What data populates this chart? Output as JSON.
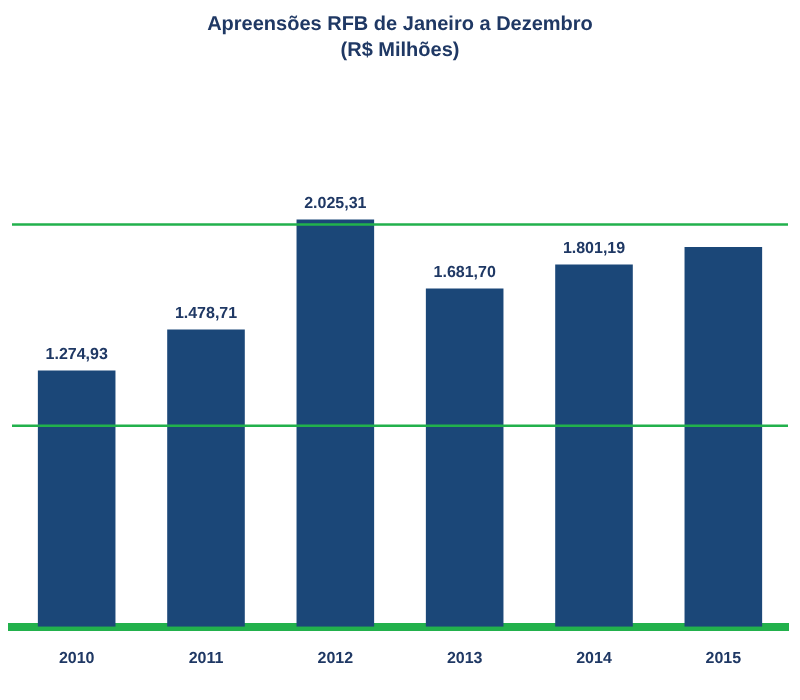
{
  "chart_data": {
    "type": "bar",
    "title": "Apreensões RFB de Janeiro a Dezembro",
    "subtitle": "(R$ Milhões)",
    "categories": [
      "2010",
      "2011",
      "2012",
      "2013",
      "2014",
      "2015"
    ],
    "values": [
      1274.93,
      1478.71,
      2025.31,
      1681.7,
      1801.19,
      1888
    ],
    "value_labels": [
      "1.274,93",
      "1.478,71",
      "2.025,31",
      "1.681,70",
      "1.801,19",
      null
    ],
    "color": "#1b4778",
    "ref_lines": [
      {
        "axis": "y",
        "value": 1000,
        "color": "#22b14c"
      },
      {
        "axis": "y",
        "value": 2000,
        "color": "#22b14c"
      }
    ],
    "tick_labels": "x",
    "legend": false
  }
}
